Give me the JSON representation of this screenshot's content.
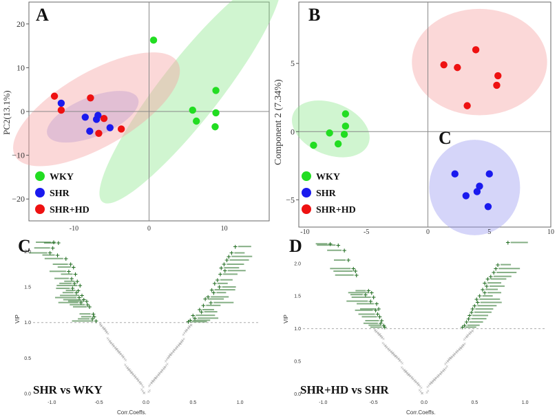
{
  "colors": {
    "wky": "#22dd22",
    "shr": "#1a1aee",
    "shrhd": "#ee1111",
    "volcano": "#1f6b1f",
    "noise": "#b8b8b8",
    "ellipse_wky": "#8fe68f",
    "ellipse_shr": "#9c9cf0",
    "ellipse_shrhd": "#f5a3a3"
  },
  "panels": {
    "A": {
      "letter": "A",
      "ylabel": "PC2(13.1%)"
    },
    "B": {
      "letter": "B",
      "ylabel": "Component 2 (7.34%)",
      "extra_letter": "C"
    },
    "C": {
      "letter": "C",
      "ylabel": "VIP",
      "xlabel": "Corr.Coeffs.",
      "comparison": "SHR vs WKY"
    },
    "D": {
      "letter": "D",
      "ylabel": "VIP",
      "xlabel": "Corr.Coeffs.",
      "comparison": "SHR+HD vs SHR"
    }
  },
  "legend": [
    {
      "key": "wky",
      "label": "WKY"
    },
    {
      "key": "shr",
      "label": "SHR"
    },
    {
      "key": "shrhd",
      "label": "SHR+HD"
    }
  ],
  "chart_data": [
    {
      "type": "scatter",
      "title": "A",
      "xlabel": "",
      "ylabel": "PC2(13.1%)",
      "xlim": [
        -16,
        16
      ],
      "ylim": [
        -25,
        25
      ],
      "yticks": [
        -20,
        -10,
        0,
        10,
        20
      ],
      "xticks": [
        -10,
        0,
        10
      ],
      "xtick_labels": [
        "-10",
        "0",
        "10"
      ],
      "series": [
        {
          "name": "WKY",
          "key": "wky",
          "points": [
            [
              0.6,
              16.3
            ],
            [
              5.8,
              0.3
            ],
            [
              6.3,
              -2.2
            ],
            [
              8.9,
              4.8
            ],
            [
              8.9,
              -0.3
            ],
            [
              8.8,
              -3.5
            ]
          ],
          "ellipse": {
            "cx": 5.5,
            "cy": 5,
            "rx": 19,
            "ry": 6.8,
            "angle": -52
          }
        },
        {
          "name": "SHR",
          "key": "shr",
          "points": [
            [
              -11.7,
              1.9
            ],
            [
              -8.5,
              -1.3
            ],
            [
              -7.0,
              -1.8
            ],
            [
              -6.8,
              -0.9
            ],
            [
              -7.9,
              -4.5
            ],
            [
              -5.2,
              -3.7
            ]
          ],
          "ellipse": {
            "cx": -7.5,
            "cy": -1.2,
            "rx": 6.5,
            "ry": 4.5,
            "angle": -22
          }
        },
        {
          "name": "SHR+HD",
          "key": "shrhd",
          "points": [
            [
              -12.6,
              3.5
            ],
            [
              -11.7,
              0.3
            ],
            [
              -7.8,
              3.1
            ],
            [
              -6.0,
              -1.6
            ],
            [
              -6.7,
              -5.0
            ],
            [
              -3.7,
              -4.0
            ]
          ],
          "ellipse": {
            "cx": -7.0,
            "cy": 0.5,
            "rx": 12.5,
            "ry": 8.5,
            "angle": -30
          }
        }
      ]
    },
    {
      "type": "scatter",
      "title": "B",
      "xlabel": "",
      "ylabel": "Component 2 (7.34%)",
      "xlim": [
        -10.5,
        10
      ],
      "ylim": [
        -7,
        9.5
      ],
      "yticks": [
        -5,
        0,
        5
      ],
      "xticks": [
        -10,
        -5,
        0,
        5,
        10
      ],
      "xtick_labels": [
        "-10",
        "-5",
        "0",
        "5",
        "10"
      ],
      "series": [
        {
          "name": "WKY",
          "key": "wky",
          "points": [
            [
              -9.3,
              -1.0
            ],
            [
              -8.0,
              -0.1
            ],
            [
              -7.3,
              -0.9
            ],
            [
              -6.7,
              1.3
            ],
            [
              -6.7,
              0.4
            ],
            [
              -6.8,
              -0.2
            ]
          ],
          "ellipse": {
            "cx": -7.9,
            "cy": 0.2,
            "rx": 3.3,
            "ry": 1.9,
            "angle": 22
          }
        },
        {
          "name": "SHR",
          "key": "shr",
          "points": [
            [
              2.2,
              -3.1
            ],
            [
              3.1,
              -4.7
            ],
            [
              4.0,
              -4.4
            ],
            [
              4.2,
              -4.0
            ],
            [
              5.0,
              -3.1
            ],
            [
              4.9,
              -5.5
            ]
          ],
          "ellipse": {
            "cx": 3.8,
            "cy": -4.1,
            "rx": 3.7,
            "ry": 3.5,
            "angle": 0
          }
        },
        {
          "name": "SHR+HD",
          "key": "shrhd",
          "points": [
            [
              1.3,
              4.9
            ],
            [
              2.4,
              4.7
            ],
            [
              3.9,
              6.0
            ],
            [
              5.7,
              4.1
            ],
            [
              5.6,
              3.4
            ],
            [
              3.2,
              1.9
            ]
          ],
          "ellipse": {
            "cx": 4.2,
            "cy": 5.1,
            "rx": 5.5,
            "ry": 3.9,
            "angle": 0
          }
        }
      ]
    },
    {
      "type": "scatter",
      "title": "SHR vs WKY",
      "xlabel": "Corr.Coeffs.",
      "ylabel": "VIP",
      "xlim": [
        -1.2,
        1.2
      ],
      "ylim": [
        -0.05,
        2.2
      ],
      "yticks": [
        0.0,
        0.5,
        1.0,
        1.5,
        2.0
      ],
      "yticks_labels": [
        "0.0",
        "0.5",
        "1.0",
        "1.5",
        "2.0"
      ],
      "xticks": [
        -1.0,
        -0.5,
        0.0,
        0.5,
        1.0
      ],
      "xtick_labels": [
        "-1.0",
        "-0.5",
        "0.0",
        "0.5",
        "1.0"
      ],
      "threshold": 1.0,
      "significant_points": [
        [
          -0.98,
          2.13
        ],
        [
          -0.93,
          2.12
        ],
        [
          -0.99,
          2.05
        ],
        [
          -1.02,
          1.98
        ],
        [
          -0.94,
          1.95
        ],
        [
          -0.85,
          1.9
        ],
        [
          -0.8,
          1.82
        ],
        [
          -0.77,
          1.78
        ],
        [
          -0.82,
          1.72
        ],
        [
          -0.75,
          1.68
        ],
        [
          -0.79,
          1.62
        ],
        [
          -0.73,
          1.58
        ],
        [
          -0.76,
          1.55
        ],
        [
          -0.7,
          1.52
        ],
        [
          -0.78,
          1.48
        ],
        [
          -0.72,
          1.45
        ],
        [
          -0.74,
          1.42
        ],
        [
          -0.68,
          1.38
        ],
        [
          -0.71,
          1.35
        ],
        [
          -0.66,
          1.32
        ],
        [
          -0.63,
          1.3
        ],
        [
          -0.69,
          1.28
        ],
        [
          -0.62,
          1.25
        ],
        [
          -0.6,
          1.22
        ],
        [
          -0.56,
          1.12
        ],
        [
          -0.55,
          1.08
        ],
        [
          -0.57,
          1.05
        ],
        [
          -0.53,
          1.02
        ],
        [
          0.95,
          2.07
        ],
        [
          0.91,
          1.98
        ],
        [
          0.88,
          1.93
        ],
        [
          0.86,
          1.88
        ],
        [
          0.83,
          1.82
        ],
        [
          0.8,
          1.77
        ],
        [
          0.84,
          1.73
        ],
        [
          0.79,
          1.68
        ],
        [
          0.76,
          1.6
        ],
        [
          0.73,
          1.55
        ],
        [
          0.78,
          1.5
        ],
        [
          0.7,
          1.46
        ],
        [
          0.72,
          1.42
        ],
        [
          0.66,
          1.36
        ],
        [
          0.63,
          1.33
        ],
        [
          0.69,
          1.28
        ],
        [
          0.61,
          1.24
        ],
        [
          0.57,
          1.18
        ],
        [
          0.59,
          1.15
        ],
        [
          0.5,
          1.1
        ],
        [
          0.52,
          1.06
        ],
        [
          0.47,
          1.03
        ],
        [
          0.45,
          1.01
        ]
      ]
    },
    {
      "type": "scatter",
      "title": "SHR+HD vs SHR",
      "xlabel": "Corr.Coeffs.",
      "ylabel": "VIP",
      "xlim": [
        -1.2,
        1.2
      ],
      "ylim": [
        -0.05,
        2.4
      ],
      "yticks": [
        0.0,
        0.5,
        1.0,
        1.5,
        2.0
      ],
      "yticks_labels": [
        "0.0",
        "0.5",
        "1.0",
        "1.5",
        "2.0"
      ],
      "xticks": [
        -1.0,
        -0.5,
        0.0,
        0.5,
        1.0
      ],
      "xtick_labels": [
        "-1.0",
        "-0.5",
        "0.0",
        "0.5",
        "1.0"
      ],
      "threshold": 1.0,
      "significant_points": [
        [
          -0.93,
          2.3
        ],
        [
          -0.85,
          2.28
        ],
        [
          -0.79,
          2.2
        ],
        [
          -0.75,
          2.05
        ],
        [
          -0.7,
          1.92
        ],
        [
          -0.68,
          1.88
        ],
        [
          -0.67,
          1.82
        ],
        [
          -0.55,
          1.58
        ],
        [
          -0.52,
          1.55
        ],
        [
          -0.58,
          1.52
        ],
        [
          -0.5,
          1.48
        ],
        [
          -0.53,
          1.42
        ],
        [
          -0.47,
          1.38
        ],
        [
          -0.45,
          1.3
        ],
        [
          -0.48,
          1.28
        ],
        [
          -0.46,
          1.22
        ],
        [
          -0.44,
          1.18
        ],
        [
          -0.42,
          1.12
        ],
        [
          -0.43,
          1.08
        ],
        [
          -0.4,
          1.05
        ],
        [
          -0.39,
          1.02
        ],
        [
          0.83,
          2.32
        ],
        [
          0.73,
          1.98
        ],
        [
          0.71,
          1.92
        ],
        [
          0.69,
          1.86
        ],
        [
          0.66,
          1.8
        ],
        [
          0.63,
          1.76
        ],
        [
          0.6,
          1.7
        ],
        [
          0.62,
          1.65
        ],
        [
          0.58,
          1.6
        ],
        [
          0.6,
          1.55
        ],
        [
          0.55,
          1.5
        ],
        [
          0.52,
          1.45
        ],
        [
          0.53,
          1.4
        ],
        [
          0.5,
          1.35
        ],
        [
          0.48,
          1.3
        ],
        [
          0.47,
          1.25
        ],
        [
          0.45,
          1.2
        ],
        [
          0.44,
          1.15
        ],
        [
          0.42,
          1.1
        ],
        [
          0.4,
          1.05
        ],
        [
          0.38,
          1.02
        ]
      ]
    }
  ]
}
